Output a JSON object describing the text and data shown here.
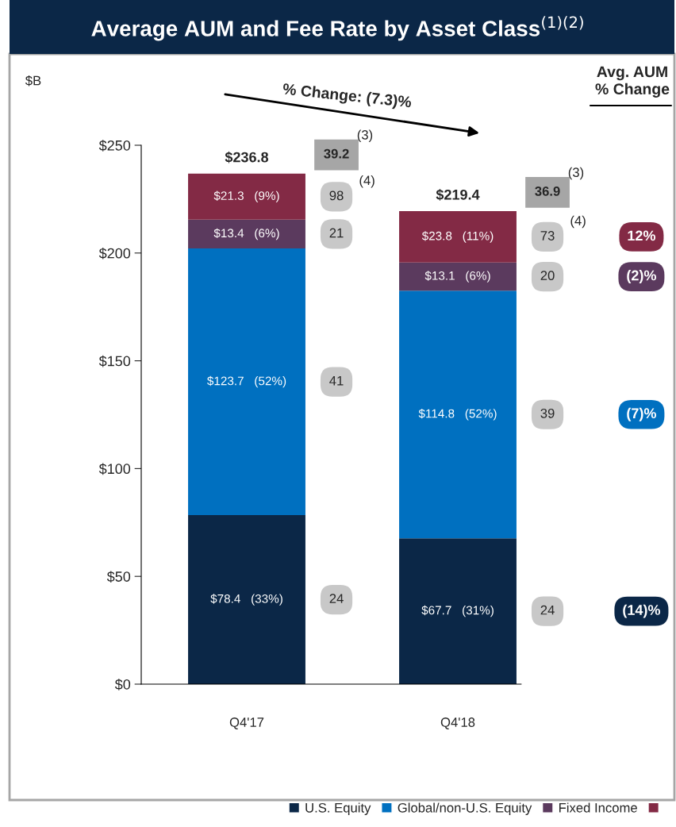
{
  "chart_data": {
    "type": "bar",
    "stacked": true,
    "title": "Average AUM and Fee Rate by Asset Class$^{(1)(2)}$",
    "categories": [
      "Q4'17",
      "Q4'18"
    ],
    "series": [
      {
        "name": "U.S. Equity",
        "color": "#0b2747",
        "values": [
          78.4,
          67.7
        ],
        "value_labels": [
          "$78.4   (33%)",
          "$67.7   (31%)"
        ]
      },
      {
        "name": "Global/non-U.S. Equity",
        "color": "#0070c0",
        "values": [
          123.7,
          114.8
        ],
        "value_labels": [
          "$123.7   (52%)",
          "$114.8   (52%)"
        ]
      },
      {
        "name": "Fixed Income",
        "color": "#5b3a5e",
        "values": [
          13.4,
          13.1
        ],
        "value_labels": [
          "$13.4   (6%)",
          "$13.1   (6%)"
        ]
      },
      {
        "color": "#832a45",
        "values": [
          21.3,
          23.8
        ],
        "value_labels": [
          "$21.3   (9%)",
          "$23.8   (11%)"
        ]
      }
    ],
    "totals": [
      "$236.8",
      "$219.4"
    ],
    "ylim": [
      0,
      250
    ],
    "yticks": [
      {
        "value": 0,
        "label": "$0"
      },
      {
        "value": 50,
        "label": "$50"
      },
      {
        "value": 100,
        "label": "$100"
      },
      {
        "value": 150,
        "label": "$150"
      },
      {
        "value": 200,
        "label": "$200"
      },
      {
        "value": 250,
        "label": "$250"
      }
    ],
    "grid": false,
    "legend": "bottom",
    "annotations": [
      "$B",
      "% Change: (7.3)%",
      "Avg. AUM\n% Change",
      "39.2",
      "36.9",
      "(3)",
      "(3)",
      "(4)",
      "(4)",
      "24",
      "41",
      "21",
      "98",
      "24",
      "39",
      "20",
      "73",
      "12%",
      "(2)%",
      "(7)%",
      "(14)%"
    ]
  }
}
